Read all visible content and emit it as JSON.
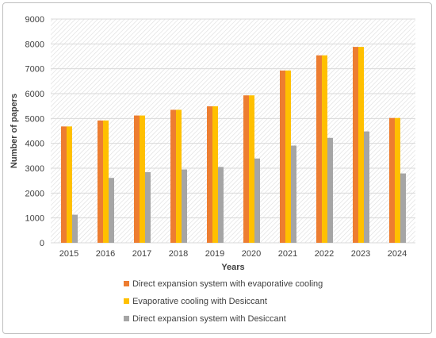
{
  "chart_data": {
    "type": "bar",
    "xlabel": "Years",
    "ylabel": "Number of papers",
    "ylim": [
      0,
      9000
    ],
    "yticks": [
      "0",
      "1000",
      "2000",
      "3000",
      "4000",
      "5000",
      "6000",
      "7000",
      "8000",
      "9000"
    ],
    "categories": [
      "2015",
      "2016",
      "2017",
      "2018",
      "2019",
      "2020",
      "2021",
      "2022",
      "2023",
      "2024"
    ],
    "grid": true,
    "legend_position": "bottom",
    "series": [
      {
        "name": "Direct expansion system with evaporative cooling",
        "color": "#ed7d31",
        "values": [
          4680,
          4920,
          5120,
          5350,
          5490,
          5930,
          6930,
          7540,
          7880,
          5020
        ]
      },
      {
        "name": "Evaporative cooling with Desiccant",
        "color": "#ffc000",
        "values": [
          4680,
          4920,
          5120,
          5350,
          5490,
          5930,
          6930,
          7540,
          7880,
          5020
        ]
      },
      {
        "name": "Direct expansion system with Desiccant",
        "color": "#a5a5a5",
        "values": [
          1130,
          2610,
          2840,
          2950,
          3050,
          3390,
          3910,
          4220,
          4480,
          2790
        ]
      }
    ]
  }
}
